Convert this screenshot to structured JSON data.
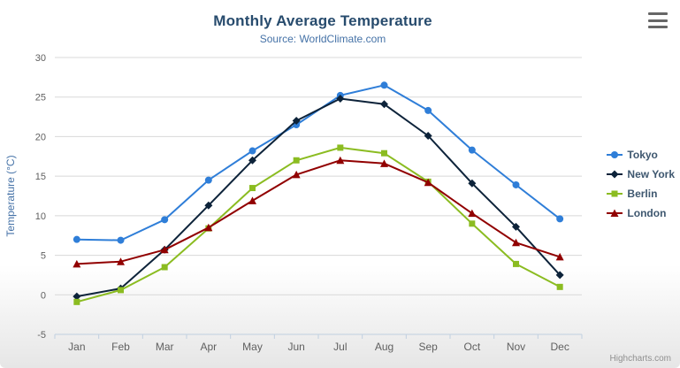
{
  "credits": "Highcharts.com",
  "chart_data": {
    "type": "line",
    "title": "Monthly Average Temperature",
    "subtitle": "Source: WorldClimate.com",
    "categories": [
      "Jan",
      "Feb",
      "Mar",
      "Apr",
      "May",
      "Jun",
      "Jul",
      "Aug",
      "Sep",
      "Oct",
      "Nov",
      "Dec"
    ],
    "series": [
      {
        "name": "Tokyo",
        "color": "#2f7ed8",
        "marker": "circle",
        "values": [
          7.0,
          6.9,
          9.5,
          14.5,
          18.2,
          21.5,
          25.2,
          26.5,
          23.3,
          18.3,
          13.9,
          9.6
        ]
      },
      {
        "name": "New York",
        "color": "#0d233a",
        "marker": "diamond",
        "values": [
          -0.2,
          0.8,
          5.7,
          11.3,
          17.0,
          22.0,
          24.8,
          24.1,
          20.1,
          14.1,
          8.6,
          2.5
        ]
      },
      {
        "name": "Berlin",
        "color": "#8bbc21",
        "marker": "square",
        "values": [
          -0.9,
          0.6,
          3.5,
          8.4,
          13.5,
          17.0,
          18.6,
          17.9,
          14.3,
          9.0,
          3.9,
          1.0
        ]
      },
      {
        "name": "London",
        "color": "#910000",
        "marker": "triangle",
        "values": [
          3.9,
          4.2,
          5.7,
          8.5,
          11.9,
          15.2,
          17.0,
          16.6,
          14.2,
          10.3,
          6.6,
          4.8
        ]
      }
    ],
    "xlabel": "",
    "ylabel": "Temperature (°C)",
    "ylim": [
      -5,
      30
    ],
    "ytick": 5,
    "grid": true,
    "legend_position": "right",
    "colors": {
      "title_text": "#274b6d",
      "subtitle_text": "#4572a7",
      "axis_label": "#606060",
      "axis_title": "#4572a7",
      "gridline": "#d8d8d8",
      "axis_line": "#c0d0e0",
      "legend_text": "#3e576f"
    }
  }
}
